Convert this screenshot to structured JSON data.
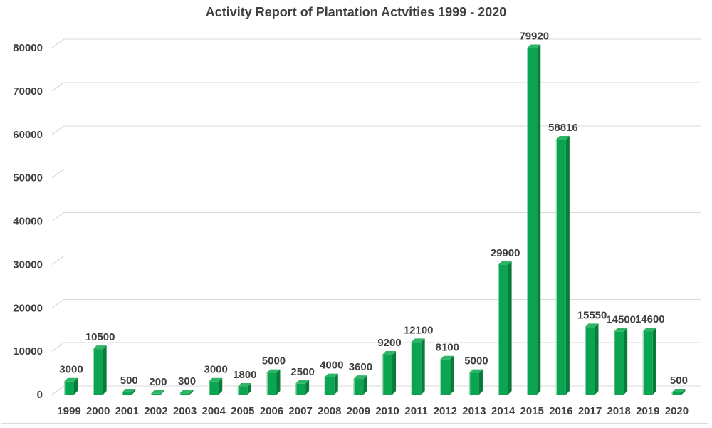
{
  "chart": {
    "title_label": "Activity Report of Plantation Actvities 1999 - 2020",
    "colors": {
      "bar_front": "#0ba551",
      "bar_side": "#087a3a",
      "bar_top": "#2eb567",
      "bar_highlight": "#9ddbb6",
      "gridline": "#d9d9d9",
      "wall_diagonal": "#d0cece",
      "text": "#404040",
      "frame_border": "#d9d9d9",
      "background": "#ffffff"
    }
  },
  "chart_data": {
    "type": "bar",
    "style": "3d-column",
    "title": "Activity Report of Plantation Actvities 1999 - 2020",
    "categories": [
      "1999",
      "2000",
      "2001",
      "2002",
      "2003",
      "2004",
      "2005",
      "2006",
      "2007",
      "2008",
      "2009",
      "2010",
      "2011",
      "2012",
      "2013",
      "2014",
      "2015",
      "2016",
      "2017",
      "2018",
      "2019",
      "2020"
    ],
    "values": [
      3000,
      10500,
      500,
      200,
      300,
      3000,
      1800,
      5000,
      2500,
      4000,
      3600,
      9200,
      12100,
      8100,
      5000,
      29900,
      79920,
      58816,
      15550,
      14500,
      14600,
      500
    ],
    "data_labels_shown": true,
    "xlabel": "",
    "ylabel": "",
    "ylim": [
      0,
      80000
    ],
    "yticks": [
      0,
      10000,
      20000,
      30000,
      40000,
      50000,
      60000,
      70000,
      80000
    ],
    "grid": true,
    "legend": false,
    "series_color": "#0ba551"
  }
}
